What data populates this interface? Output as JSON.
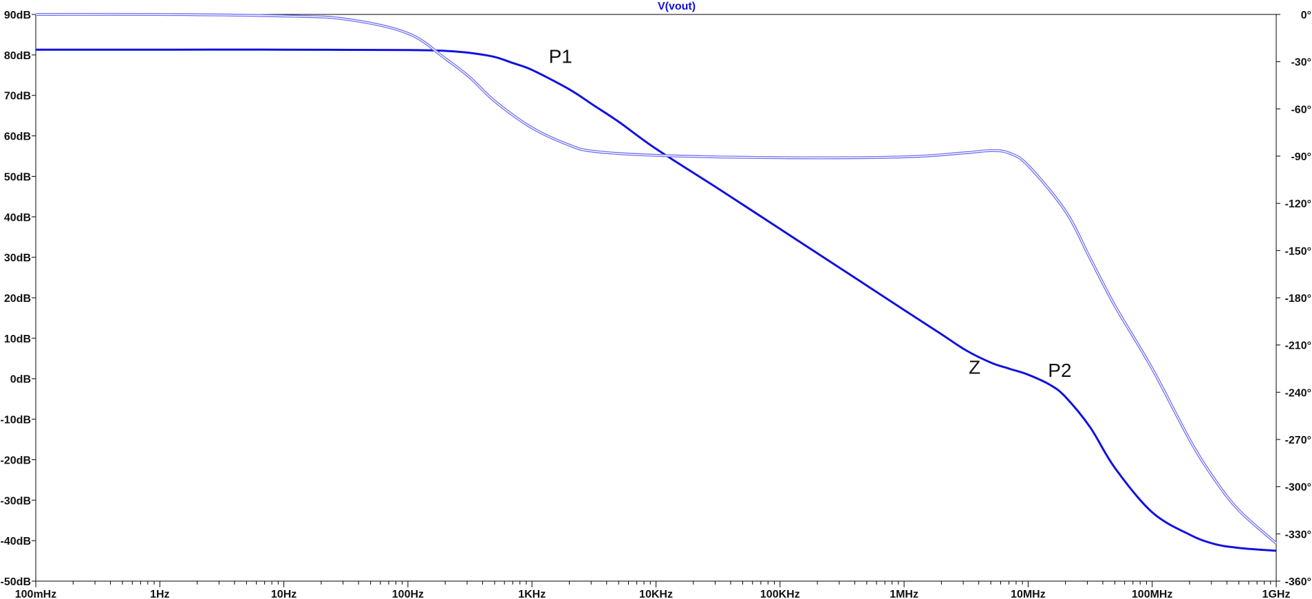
{
  "chart_data": {
    "type": "line",
    "title": "V(vout)",
    "x_scale": "log",
    "xlim": [
      0.1,
      1000000000
    ],
    "x_ticks": [
      {
        "value": 0.1,
        "label": "100mHz"
      },
      {
        "value": 1,
        "label": "1Hz"
      },
      {
        "value": 10,
        "label": "10Hz"
      },
      {
        "value": 100,
        "label": "100Hz"
      },
      {
        "value": 1000,
        "label": "1KHz"
      },
      {
        "value": 10000,
        "label": "10KHz"
      },
      {
        "value": 100000,
        "label": "100KHz"
      },
      {
        "value": 1000000,
        "label": "1MHz"
      },
      {
        "value": 10000000,
        "label": "10MHz"
      },
      {
        "value": 100000000,
        "label": "100MHz"
      },
      {
        "value": 1000000000,
        "label": "1GHz"
      }
    ],
    "ylim_left": [
      -50,
      90
    ],
    "y_ticks_left": [
      {
        "value": 90,
        "label": "90dB"
      },
      {
        "value": 80,
        "label": "80dB"
      },
      {
        "value": 70,
        "label": "70dB"
      },
      {
        "value": 60,
        "label": "60dB"
      },
      {
        "value": 50,
        "label": "50dB"
      },
      {
        "value": 40,
        "label": "40dB"
      },
      {
        "value": 30,
        "label": "30dB"
      },
      {
        "value": 20,
        "label": "20dB"
      },
      {
        "value": 10,
        "label": "10dB"
      },
      {
        "value": 0,
        "label": "0dB"
      },
      {
        "value": -10,
        "label": "-10dB"
      },
      {
        "value": -20,
        "label": "-20dB"
      },
      {
        "value": -30,
        "label": "-30dB"
      },
      {
        "value": -40,
        "label": "-40dB"
      },
      {
        "value": -50,
        "label": "-50dB"
      }
    ],
    "ylim_right": [
      -360,
      0
    ],
    "y_ticks_right": [
      {
        "value": 0,
        "label": "0°"
      },
      {
        "value": -30,
        "label": "-30°"
      },
      {
        "value": -60,
        "label": "-60°"
      },
      {
        "value": -90,
        "label": "-90°"
      },
      {
        "value": -120,
        "label": "-120°"
      },
      {
        "value": -150,
        "label": "-150°"
      },
      {
        "value": -180,
        "label": "-180°"
      },
      {
        "value": -210,
        "label": "-210°"
      },
      {
        "value": -240,
        "label": "-240°"
      },
      {
        "value": -270,
        "label": "-270°"
      },
      {
        "value": -300,
        "label": "-300°"
      },
      {
        "value": -330,
        "label": "-330°"
      },
      {
        "value": -360,
        "label": "-360°"
      }
    ],
    "grid": false,
    "colors": {
      "magnitude": "#1010e0",
      "phase": "#7070f0",
      "axis": "#000000",
      "title": "#1010e0"
    },
    "series": [
      {
        "axis": "left",
        "style": "solid",
        "points": [
          [
            0.1,
            81.3
          ],
          [
            1,
            81.3
          ],
          [
            10,
            81.3
          ],
          [
            100,
            81.2
          ],
          [
            200,
            81.0
          ],
          [
            316,
            80.5
          ],
          [
            500,
            79.5
          ],
          [
            700,
            78.0
          ],
          [
            1000,
            76.3
          ],
          [
            2000,
            71.5
          ],
          [
            3162,
            67.5
          ],
          [
            5000,
            63.5
          ],
          [
            10000,
            56.8
          ],
          [
            31623,
            47.0
          ],
          [
            100000,
            37.0
          ],
          [
            316228,
            27.0
          ],
          [
            1000000,
            17.0
          ],
          [
            2000000,
            11.0
          ],
          [
            3162278,
            7.0
          ],
          [
            5000000,
            4.0
          ],
          [
            7000000,
            2.5
          ],
          [
            10000000,
            1.0
          ],
          [
            15000000,
            -1.5
          ],
          [
            20000000,
            -4.5
          ],
          [
            31622777,
            -12.0
          ],
          [
            50000000,
            -22.0
          ],
          [
            100000000,
            -33.0
          ],
          [
            200000000,
            -38.5
          ],
          [
            316227766,
            -40.8
          ],
          [
            500000000,
            -41.8
          ],
          [
            1000000000,
            -42.5
          ]
        ]
      },
      {
        "axis": "right",
        "style": "double",
        "points": [
          [
            0.1,
            0
          ],
          [
            1,
            0
          ],
          [
            10,
            -1
          ],
          [
            31.6,
            -3
          ],
          [
            100,
            -12
          ],
          [
            200,
            -28
          ],
          [
            316,
            -40
          ],
          [
            500,
            -55
          ],
          [
            1000,
            -72
          ],
          [
            2000,
            -83
          ],
          [
            3162,
            -87
          ],
          [
            10000,
            -89.5
          ],
          [
            100000,
            -91
          ],
          [
            1000000,
            -90.5
          ],
          [
            3000000,
            -88
          ],
          [
            5000000,
            -86.5
          ],
          [
            7000000,
            -88
          ],
          [
            10000000,
            -96
          ],
          [
            20000000,
            -125
          ],
          [
            31622777,
            -155
          ],
          [
            50000000,
            -185
          ],
          [
            100000000,
            -225
          ],
          [
            200000000,
            -270
          ],
          [
            316227766,
            -295
          ],
          [
            500000000,
            -315
          ],
          [
            1000000000,
            -336
          ]
        ]
      }
    ],
    "annotations": [
      {
        "text": "P1",
        "x": 1700,
        "y": 78
      },
      {
        "text": "Z",
        "x": 3700000,
        "y": 1.2
      },
      {
        "text": "P2",
        "x": 18000000,
        "y": 0.5
      }
    ]
  }
}
